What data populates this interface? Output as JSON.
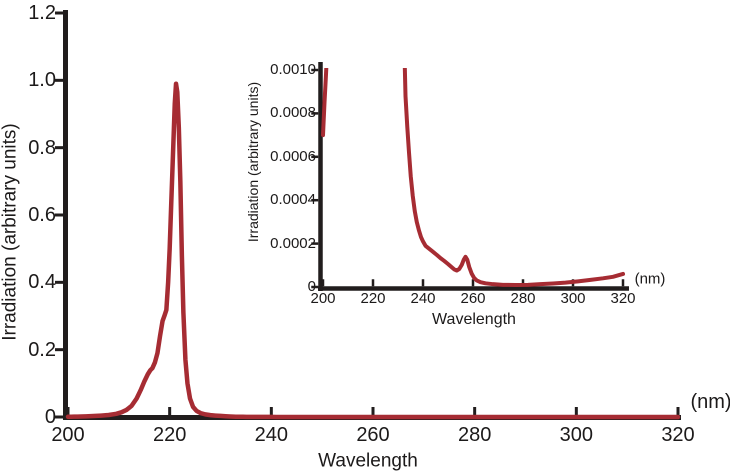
{
  "figure": {
    "background": "#ffffff",
    "curve_color": "#a62c33",
    "axis_color": "#211d1d",
    "text_color": "#1c1a1a"
  },
  "chart_data": [
    {
      "id": "main",
      "type": "line",
      "title": "",
      "xlabel": "Wavelength",
      "x_unit": "(nm)",
      "ylabel": "Irradiation (arbitrary units)",
      "xlim": [
        200,
        320
      ],
      "ylim": [
        0,
        1.2
      ],
      "grid": false,
      "legend": null,
      "x_ticks": [
        200,
        220,
        240,
        260,
        280,
        300,
        320
      ],
      "x_tick_labels": [
        "200",
        "220",
        "240",
        "260",
        "280",
        "300",
        "320"
      ],
      "y_ticks": [
        0,
        0.2,
        0.4,
        0.6,
        0.8,
        1.0,
        1.2
      ],
      "y_tick_labels": [
        "0",
        "0.2",
        "0.4",
        "0.6",
        "0.8",
        "1.0",
        "1.2"
      ],
      "peak": {
        "wavelength_nm": 221.3,
        "value": 0.99
      },
      "series": [
        {
          "name": "irradiation-spectrum",
          "color": "#a62c33",
          "points": [
            [
              200,
              0.0007
            ],
            [
              200.6,
              0.00085
            ],
            [
              201.2,
              0.00098
            ],
            [
              201.9,
              0.00115
            ],
            [
              202.6,
              0.0014
            ],
            [
              203.5,
              0.0018
            ],
            [
              205,
              0.0028
            ],
            [
              206.5,
              0.0042
            ],
            [
              208,
              0.006
            ],
            [
              209.5,
              0.0095
            ],
            [
              210.5,
              0.014
            ],
            [
              211.5,
              0.021
            ],
            [
              212.5,
              0.033
            ],
            [
              213.5,
              0.055
            ],
            [
              214.3,
              0.08
            ],
            [
              215,
              0.105
            ],
            [
              215.7,
              0.127
            ],
            [
              216.2,
              0.139
            ],
            [
              216.6,
              0.145
            ],
            [
              217.1,
              0.162
            ],
            [
              217.6,
              0.19
            ],
            [
              218.1,
              0.24
            ],
            [
              218.6,
              0.285
            ],
            [
              219,
              0.302
            ],
            [
              219.35,
              0.318
            ],
            [
              219.7,
              0.4
            ],
            [
              220,
              0.5
            ],
            [
              220.3,
              0.63
            ],
            [
              220.7,
              0.8
            ],
            [
              221,
              0.93
            ],
            [
              221.25,
              0.99
            ],
            [
              221.5,
              0.965
            ],
            [
              221.8,
              0.86
            ],
            [
              222.1,
              0.7
            ],
            [
              222.4,
              0.48
            ],
            [
              222.7,
              0.31
            ],
            [
              223.1,
              0.17
            ],
            [
              223.5,
              0.1
            ],
            [
              224,
              0.055
            ],
            [
              224.6,
              0.03
            ],
            [
              225.3,
              0.018
            ],
            [
              226.1,
              0.0115
            ],
            [
              227,
              0.0078
            ],
            [
              228,
              0.0055
            ],
            [
              229,
              0.0042
            ],
            [
              230,
              0.0032
            ],
            [
              231,
              0.0023
            ],
            [
              231.9,
              0.00155
            ],
            [
              232.5,
              0.00112
            ],
            [
              233,
              0.00088
            ],
            [
              233.7,
              0.00074
            ],
            [
              234.4,
              0.00062
            ],
            [
              235.1,
              0.00051
            ],
            [
              235.9,
              0.00042
            ],
            [
              236.7,
              0.00035
            ],
            [
              237.5,
              0.0003
            ],
            [
              238.4,
              0.00026
            ],
            [
              239.2,
              0.00023
            ],
            [
              240,
              0.00021
            ],
            [
              241,
              0.00019
            ],
            [
              242.5,
              0.000176
            ],
            [
              244,
              0.000162
            ],
            [
              245.5,
              0.000148
            ],
            [
              247,
              0.000133
            ],
            [
              248.5,
              0.00012
            ],
            [
              250,
              0.000106
            ],
            [
              251.5,
              9.1e-05
            ],
            [
              252.5,
              8.1e-05
            ],
            [
              253.5,
              7.6e-05
            ],
            [
              254.5,
              8.3e-05
            ],
            [
              255.5,
              0.000102
            ],
            [
              256.3,
              0.000126
            ],
            [
              257,
              0.000139
            ],
            [
              257.7,
              0.000126
            ],
            [
              258.5,
              9.2e-05
            ],
            [
              259.5,
              6.1e-05
            ],
            [
              260.5,
              4.1e-05
            ],
            [
              261.5,
              3e-05
            ],
            [
              263,
              2.2e-05
            ],
            [
              265,
              1.7e-05
            ],
            [
              268,
              1.3e-05
            ],
            [
              272,
              1e-05
            ],
            [
              277,
              9e-06
            ],
            [
              282,
              1e-05
            ],
            [
              287,
              1.3e-05
            ],
            [
              292,
              1.6e-05
            ],
            [
              297,
              2e-05
            ],
            [
              302,
              2.6e-05
            ],
            [
              307,
              3.3e-05
            ],
            [
              312,
              4e-05
            ],
            [
              316,
              4.7e-05
            ],
            [
              320,
              6e-05
            ]
          ]
        }
      ]
    },
    {
      "id": "inset",
      "type": "line",
      "title": "",
      "xlabel": "Wavelength",
      "x_unit": "(nm)",
      "ylabel": "Irradiation (arbitrary units)",
      "xlim": [
        200,
        320
      ],
      "ylim": [
        0,
        0.001
      ],
      "grid": false,
      "legend": null,
      "x_ticks": [
        200,
        220,
        240,
        260,
        280,
        300,
        320
      ],
      "x_tick_labels": [
        "200",
        "220",
        "240",
        "260",
        "280",
        "300",
        "320"
      ],
      "y_ticks": [
        0,
        0.0002,
        0.0004,
        0.0006,
        0.0008,
        0.001
      ],
      "y_tick_labels": [
        "0",
        "0.0002",
        "0.0004",
        "0.0006",
        "0.0008",
        "0.0010"
      ],
      "peak": {
        "wavelength_nm": 257,
        "value": 0.000139
      },
      "series": [
        {
          "name": "irradiation-spectrum-magnified",
          "color": "#a62c33",
          "points": [
            [
              200,
              0.0007
            ],
            [
              200.6,
              0.00085
            ],
            [
              201.2,
              0.00098
            ],
            [
              201.9,
              0.00115
            ],
            [
              202.6,
              0.0014
            ],
            [
              203.5,
              0.0018
            ],
            [
              205,
              0.0028
            ],
            [
              206.5,
              0.0042
            ],
            [
              208,
              0.006
            ],
            [
              209.5,
              0.0095
            ],
            [
              210.5,
              0.014
            ],
            [
              211.5,
              0.021
            ],
            [
              212.5,
              0.033
            ],
            [
              213.5,
              0.055
            ],
            [
              214.3,
              0.08
            ],
            [
              215,
              0.105
            ],
            [
              215.7,
              0.127
            ],
            [
              216.2,
              0.139
            ],
            [
              216.6,
              0.145
            ],
            [
              217.1,
              0.162
            ],
            [
              217.6,
              0.19
            ],
            [
              218.1,
              0.24
            ],
            [
              218.6,
              0.285
            ],
            [
              219,
              0.302
            ],
            [
              219.35,
              0.318
            ],
            [
              219.7,
              0.4
            ],
            [
              220,
              0.5
            ],
            [
              220.3,
              0.63
            ],
            [
              220.7,
              0.8
            ],
            [
              221,
              0.93
            ],
            [
              221.25,
              0.99
            ],
            [
              221.5,
              0.965
            ],
            [
              221.8,
              0.86
            ],
            [
              222.1,
              0.7
            ],
            [
              222.4,
              0.48
            ],
            [
              222.7,
              0.31
            ],
            [
              223.1,
              0.17
            ],
            [
              223.5,
              0.1
            ],
            [
              224,
              0.055
            ],
            [
              224.6,
              0.03
            ],
            [
              225.3,
              0.018
            ],
            [
              226.1,
              0.0115
            ],
            [
              227,
              0.0078
            ],
            [
              228,
              0.0055
            ],
            [
              229,
              0.0042
            ],
            [
              230,
              0.0032
            ],
            [
              231,
              0.0023
            ],
            [
              231.9,
              0.00155
            ],
            [
              232.5,
              0.00112
            ],
            [
              233,
              0.00088
            ],
            [
              233.7,
              0.00074
            ],
            [
              234.4,
              0.00062
            ],
            [
              235.1,
              0.00051
            ],
            [
              235.9,
              0.00042
            ],
            [
              236.7,
              0.00035
            ],
            [
              237.5,
              0.0003
            ],
            [
              238.4,
              0.00026
            ],
            [
              239.2,
              0.00023
            ],
            [
              240,
              0.00021
            ],
            [
              241,
              0.00019
            ],
            [
              242.5,
              0.000176
            ],
            [
              244,
              0.000162
            ],
            [
              245.5,
              0.000148
            ],
            [
              247,
              0.000133
            ],
            [
              248.5,
              0.00012
            ],
            [
              250,
              0.000106
            ],
            [
              251.5,
              9.1e-05
            ],
            [
              252.5,
              8.1e-05
            ],
            [
              253.5,
              7.6e-05
            ],
            [
              254.5,
              8.3e-05
            ],
            [
              255.5,
              0.000102
            ],
            [
              256.3,
              0.000126
            ],
            [
              257,
              0.000139
            ],
            [
              257.7,
              0.000126
            ],
            [
              258.5,
              9.2e-05
            ],
            [
              259.5,
              6.1e-05
            ],
            [
              260.5,
              4.1e-05
            ],
            [
              261.5,
              3e-05
            ],
            [
              263,
              2.2e-05
            ],
            [
              265,
              1.7e-05
            ],
            [
              268,
              1.3e-05
            ],
            [
              272,
              1e-05
            ],
            [
              277,
              9e-06
            ],
            [
              282,
              1e-05
            ],
            [
              287,
              1.3e-05
            ],
            [
              292,
              1.6e-05
            ],
            [
              297,
              2e-05
            ],
            [
              302,
              2.6e-05
            ],
            [
              307,
              3.3e-05
            ],
            [
              312,
              4e-05
            ],
            [
              316,
              4.7e-05
            ],
            [
              320,
              6e-05
            ]
          ]
        }
      ]
    }
  ]
}
